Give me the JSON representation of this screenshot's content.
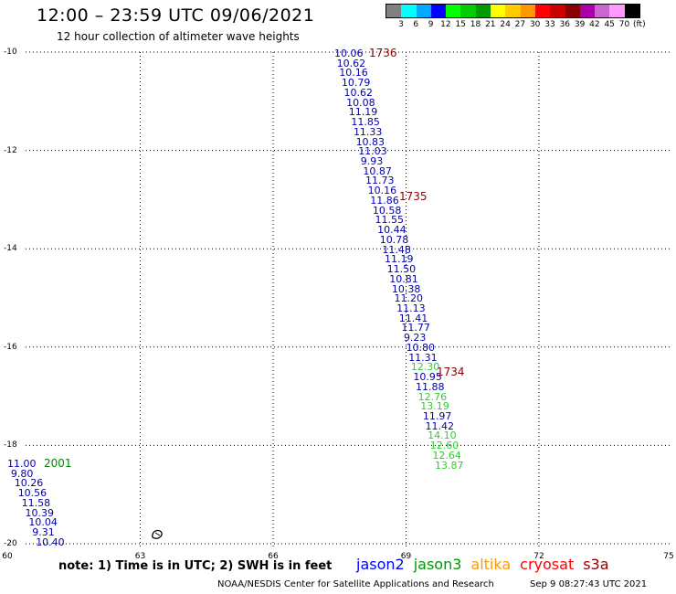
{
  "header": {
    "title": "12:00 – 23:59 UTC 09/06/2021",
    "subtitle": "12 hour collection of altimeter wave heights"
  },
  "legend": {
    "colors": [
      "#808080",
      "#00ffff",
      "#00aaff",
      "#0000ff",
      "#00ff00",
      "#00cc00",
      "#009900",
      "#ffff00",
      "#ffcc00",
      "#ff9900",
      "#ff0000",
      "#cc0000",
      "#880000",
      "#aa00aa",
      "#cc66cc",
      "#ff99ff",
      "#000000"
    ],
    "labels": [
      "3",
      "6",
      "9",
      "12",
      "15",
      "18",
      "21",
      "24",
      "27",
      "30",
      "33",
      "36",
      "39",
      "42",
      "45",
      "70",
      "(ft)"
    ]
  },
  "axes": {
    "lat_labels": [
      "-10",
      "-12",
      "-14",
      "-16",
      "-18",
      "-20"
    ],
    "lon_labels": [
      "60",
      "63",
      "66",
      "69",
      "72",
      "75"
    ]
  },
  "tracks": [
    {
      "pass": "1736",
      "color": "#0000aa",
      "values": [
        "10.06"
      ]
    },
    {
      "pass": "",
      "color": "#0000aa",
      "values": [
        "10.62",
        "10.16",
        "10.79",
        "10.62",
        "10.08",
        "11.19",
        "11.85",
        "11.33",
        "10.83",
        "11.03",
        "9.93",
        "10.87",
        "11.73",
        "10.16",
        "11.86",
        "10.58",
        "11.55",
        "10.44",
        "10.78",
        "11.48",
        "11.19",
        "11.50",
        "10.81",
        "10.38",
        "11.20",
        "11.13",
        "11.41",
        "11.77",
        "9.23",
        "10.80",
        "11.31"
      ]
    },
    {
      "pass": "",
      "color": "#33cc33",
      "values": [
        "12.30"
      ]
    },
    {
      "pass": "",
      "color": "#0000aa",
      "values": [
        "10.95",
        "11.88"
      ]
    },
    {
      "pass": "",
      "color": "#33cc33",
      "values": [
        "12.76",
        "13.19"
      ]
    },
    {
      "pass": "",
      "color": "#0000aa",
      "values": [
        "11.97",
        "11.42"
      ]
    },
    {
      "pass": "",
      "color": "#33cc33",
      "values": [
        "14.10",
        "12.60",
        "12.64",
        "13.87"
      ]
    }
  ],
  "time_labels": [
    {
      "text": "1736",
      "color": "#8b0000"
    },
    {
      "text": "1735",
      "color": "#8b0000"
    },
    {
      "text": "1734",
      "color": "#8b0000"
    },
    {
      "text": "2001",
      "color": "#008800"
    }
  ],
  "west_track": {
    "color": "#0000aa",
    "values": [
      "11.00",
      "9.80",
      "10.26",
      "10.56",
      "11.58",
      "10.39",
      "10.04",
      "9.31",
      "10.40"
    ]
  },
  "footer": {
    "note": "note: 1) Time is in UTC; 2) SWH is in feet",
    "satellites": [
      {
        "name": "jason2",
        "color": "#0000ff"
      },
      {
        "name": "jason3",
        "color": "#009900"
      },
      {
        "name": "altika",
        "color": "#ff9900"
      },
      {
        "name": "cryosat",
        "color": "#ff0000"
      },
      {
        "name": "s3a",
        "color": "#880000"
      }
    ],
    "credit": "NOAA/NESDIS Center for Satellite Applications and Research",
    "timestamp": "Sep  9 08:27:43 UTC 2021"
  }
}
